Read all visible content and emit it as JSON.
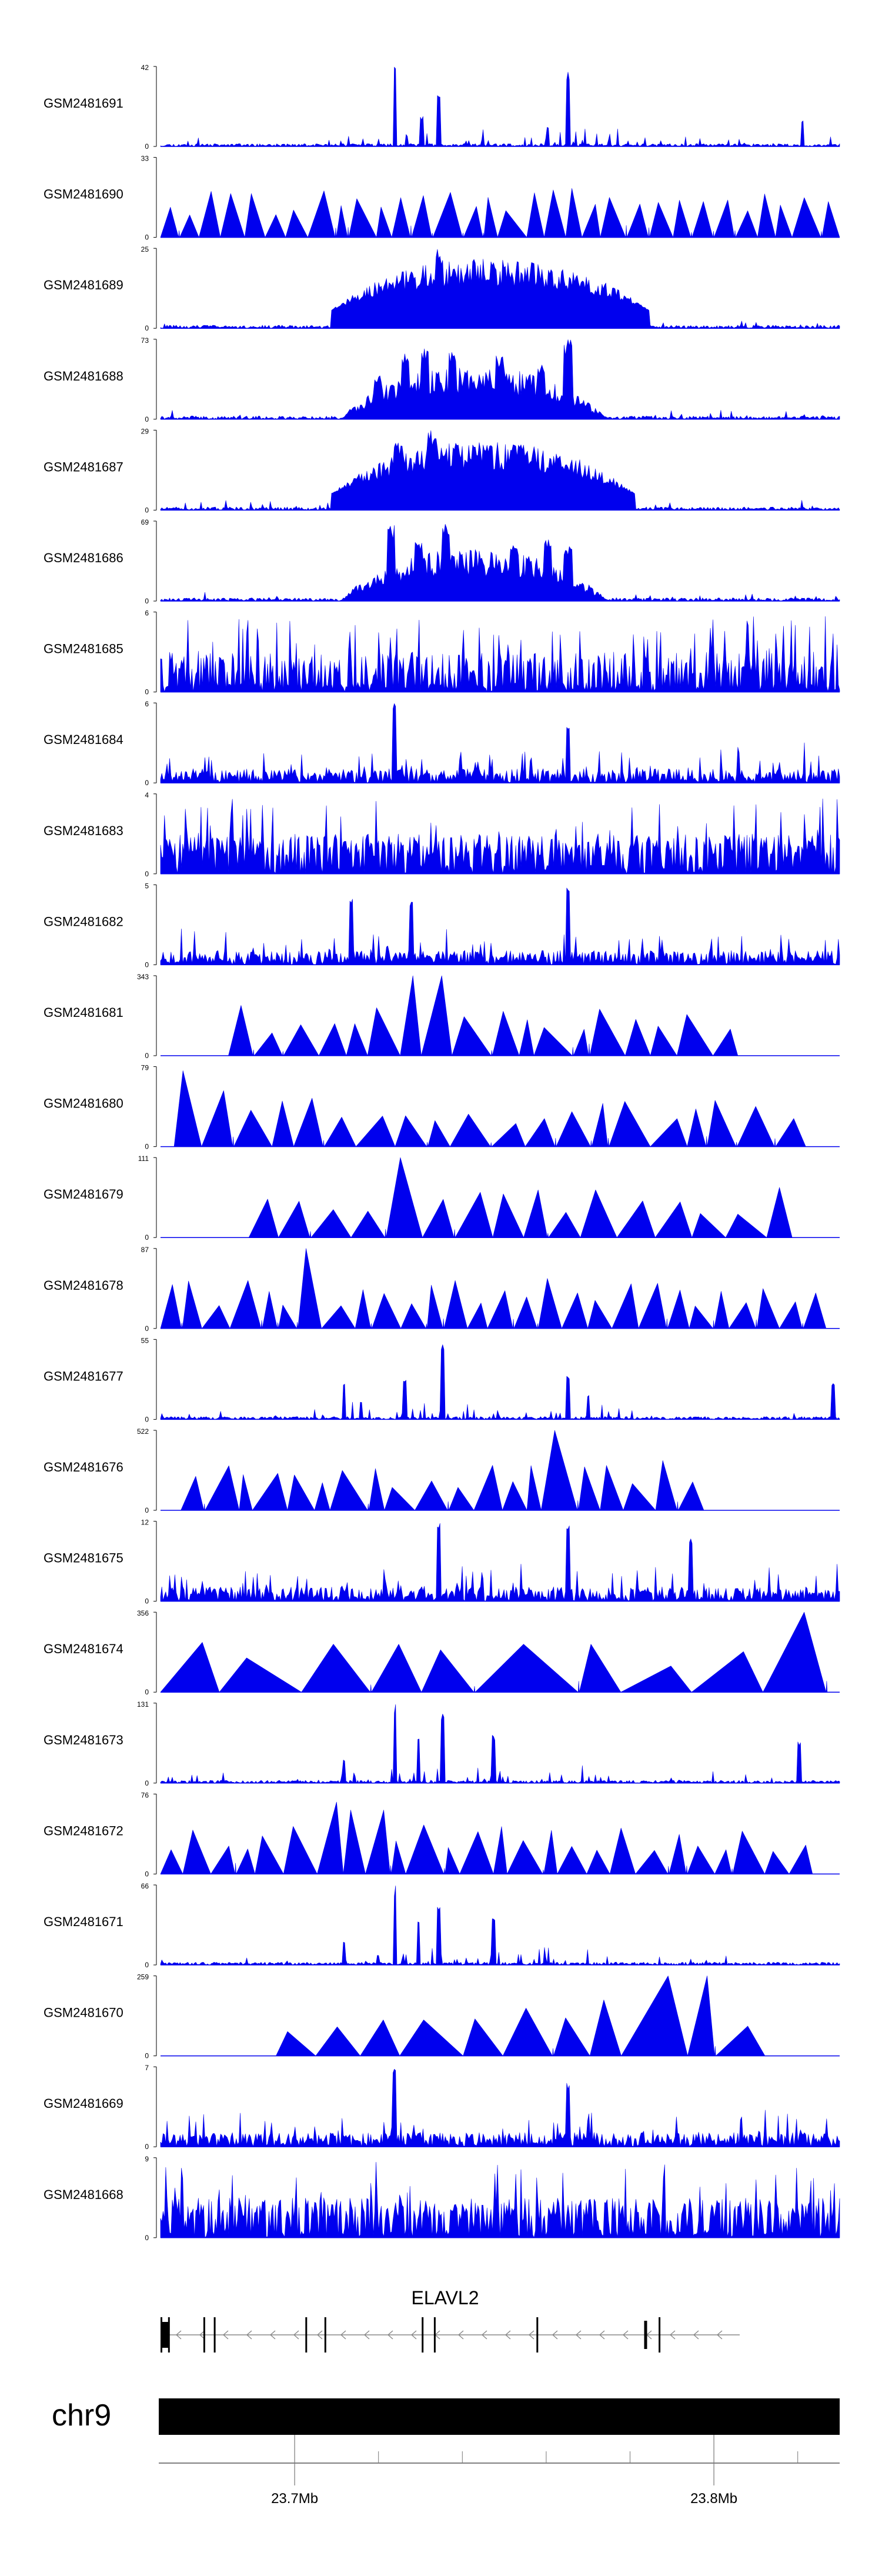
{
  "chart_data": {
    "type": "area",
    "title": "",
    "xlabel": "",
    "ylabel": "",
    "xlim": [
      23.668,
      23.83
    ],
    "tracks": [
      {
        "name": "GSM2481691",
        "ymax": 42,
        "ymin": 0,
        "style": "sparse",
        "peaks": [
          [
            0.345,
            1.0
          ],
          [
            0.385,
            0.38
          ],
          [
            0.41,
            0.7
          ],
          [
            0.6,
            0.95
          ],
          [
            0.945,
            0.33
          ],
          [
            0.57,
            0.25
          ]
        ],
        "seed": 11
      },
      {
        "name": "GSM2481690",
        "ymax": 33,
        "ymin": 0,
        "style": "triangles",
        "first": 0.0,
        "last": 1.0,
        "n": 32,
        "seed": 21
      },
      {
        "name": "GSM2481689",
        "ymax": 25,
        "ymin": 0,
        "style": "cluster",
        "cstart": 0.25,
        "cend": 0.72,
        "base": 0.22,
        "peaks": [
          [
            0.41,
            1.0
          ],
          [
            0.36,
            0.45
          ],
          [
            0.45,
            0.55
          ],
          [
            0.5,
            0.5
          ]
        ],
        "seed": 31
      },
      {
        "name": "GSM2481688",
        "ymax": 73,
        "ymin": 0,
        "style": "cluster",
        "cstart": 0.26,
        "cend": 0.66,
        "base": 0.0,
        "peaks": [
          [
            0.32,
            0.55
          ],
          [
            0.36,
            0.85
          ],
          [
            0.39,
            0.92
          ],
          [
            0.43,
            0.85
          ],
          [
            0.5,
            0.8
          ],
          [
            0.56,
            0.7
          ],
          [
            0.6,
            1.0
          ]
        ],
        "seed": 41
      },
      {
        "name": "GSM2481687",
        "ymax": 29,
        "ymin": 0,
        "style": "cluster",
        "cstart": 0.25,
        "cend": 0.7,
        "base": 0.2,
        "peaks": [
          [
            0.35,
            0.85
          ],
          [
            0.4,
            1.0
          ],
          [
            0.47,
            0.7
          ],
          [
            0.55,
            0.65
          ]
        ],
        "seed": 51
      },
      {
        "name": "GSM2481686",
        "ymax": 69,
        "ymin": 0,
        "style": "cluster",
        "cstart": 0.26,
        "cend": 0.66,
        "base": 0.0,
        "peaks": [
          [
            0.34,
            0.95
          ],
          [
            0.38,
            0.8
          ],
          [
            0.42,
            1.0
          ],
          [
            0.52,
            0.7
          ],
          [
            0.57,
            0.8
          ],
          [
            0.6,
            0.7
          ]
        ],
        "seed": 61
      },
      {
        "name": "GSM2481685",
        "ymax": 6,
        "ymin": 0,
        "style": "dense",
        "density": 0.55,
        "seed": 71
      },
      {
        "name": "GSM2481684",
        "ymax": 6,
        "ymin": 0,
        "style": "noisy",
        "peaks": [
          [
            0.345,
            1.0
          ],
          [
            0.6,
            0.7
          ]
        ],
        "seed": 81
      },
      {
        "name": "GSM2481683",
        "ymax": 4,
        "ymin": 0,
        "style": "dense",
        "density": 0.7,
        "seed": 91
      },
      {
        "name": "GSM2481682",
        "ymax": 5,
        "ymin": 0,
        "style": "noisy",
        "peaks": [
          [
            0.6,
            1.0
          ],
          [
            0.28,
            0.85
          ],
          [
            0.37,
            0.8
          ]
        ],
        "seed": 101
      },
      {
        "name": "GSM2481681",
        "ymax": 343,
        "ymin": 0,
        "style": "triangles",
        "first": 0.1,
        "last": 0.85,
        "n": 18,
        "peaks": [
          [
            0.38,
            1.0
          ],
          [
            0.345,
            0.6
          ],
          [
            0.3,
            0.4
          ]
        ],
        "seed": 111
      },
      {
        "name": "GSM2481680",
        "ymax": 79,
        "ymin": 0,
        "style": "triangles",
        "first": 0.02,
        "last": 0.95,
        "n": 20,
        "peaks": [
          [
            0.04,
            0.95
          ],
          [
            0.09,
            0.7
          ]
        ],
        "seed": 121
      },
      {
        "name": "GSM2481679",
        "ymax": 111,
        "ymin": 0,
        "style": "triangles",
        "first": 0.13,
        "last": 0.93,
        "n": 16,
        "peaks": [
          [
            0.35,
            1.0
          ]
        ],
        "seed": 131
      },
      {
        "name": "GSM2481678",
        "ymax": 87,
        "ymin": 0,
        "style": "triangles",
        "first": 0.0,
        "last": 0.98,
        "n": 28,
        "peaks": [
          [
            0.21,
            1.0
          ],
          [
            0.12,
            0.6
          ]
        ],
        "seed": 141
      },
      {
        "name": "GSM2481677",
        "ymax": 55,
        "ymin": 0,
        "style": "sparse",
        "peaks": [
          [
            0.415,
            1.0
          ],
          [
            0.36,
            0.5
          ],
          [
            0.6,
            0.55
          ],
          [
            0.27,
            0.45
          ],
          [
            0.63,
            0.3
          ],
          [
            0.99,
            0.45
          ]
        ],
        "seed": 151
      },
      {
        "name": "GSM2481676",
        "ymax": 522,
        "ymin": 0,
        "style": "triangles",
        "first": 0.03,
        "last": 0.8,
        "n": 20,
        "peaks": [
          [
            0.575,
            1.0
          ]
        ],
        "seed": 161
      },
      {
        "name": "GSM2481675",
        "ymax": 12,
        "ymin": 0,
        "style": "noisy",
        "peaks": [
          [
            0.41,
            1.0
          ],
          [
            0.6,
            1.0
          ],
          [
            0.78,
            0.8
          ]
        ],
        "seed": 171
      },
      {
        "name": "GSM2481674",
        "ymax": 356,
        "ymin": 0,
        "style": "triangles",
        "first": 0.0,
        "last": 0.98,
        "n": 10,
        "peaks": [
          [
            0.955,
            1.0
          ],
          [
            0.63,
            0.6
          ],
          [
            0.31,
            0.6
          ]
        ],
        "seed": 181
      },
      {
        "name": "GSM2481673",
        "ymax": 131,
        "ymin": 0,
        "style": "sparse",
        "peaks": [
          [
            0.345,
            1.0
          ],
          [
            0.415,
            0.9
          ],
          [
            0.38,
            0.6
          ],
          [
            0.49,
            0.6
          ],
          [
            0.94,
            0.55
          ],
          [
            0.27,
            0.3
          ]
        ],
        "seed": 191
      },
      {
        "name": "GSM2481672",
        "ymax": 76,
        "ymin": 0,
        "style": "triangles",
        "first": 0.0,
        "last": 0.96,
        "n": 26,
        "peaks": [
          [
            0.26,
            0.9
          ],
          [
            0.3,
            0.8
          ],
          [
            0.065,
            0.55
          ]
        ],
        "seed": 201
      },
      {
        "name": "GSM2481671",
        "ymax": 66,
        "ymin": 0,
        "style": "sparse",
        "peaks": [
          [
            0.345,
            1.0
          ],
          [
            0.41,
            0.8
          ],
          [
            0.38,
            0.55
          ],
          [
            0.49,
            0.6
          ],
          [
            0.27,
            0.3
          ]
        ],
        "seed": 211
      },
      {
        "name": "GSM2481670",
        "ymax": 259,
        "ymin": 0,
        "style": "triangles",
        "first": 0.17,
        "last": 0.89,
        "n": 11,
        "peaks": [
          [
            0.77,
            1.0
          ],
          [
            0.66,
            0.7
          ],
          [
            0.34,
            0.45
          ]
        ],
        "seed": 221
      },
      {
        "name": "GSM2481669",
        "ymax": 7,
        "ymin": 0,
        "style": "noisy",
        "peaks": [
          [
            0.345,
            1.0
          ],
          [
            0.6,
            0.8
          ]
        ],
        "seed": 231
      },
      {
        "name": "GSM2481668",
        "ymax": 9,
        "ymin": 0,
        "style": "dense",
        "density": 0.65,
        "seed": 241
      }
    ],
    "gene": {
      "name": "ELAVL2",
      "strand": "-",
      "exons": [
        0.0,
        0.013,
        0.074,
        0.092,
        0.25,
        0.283,
        0.451,
        0.472,
        0.649,
        0.835,
        0.86
      ]
    },
    "chromosome": "chr9",
    "axis_ticks": [
      {
        "value": 23.7,
        "label": "23.7Mb"
      },
      {
        "value": 23.8,
        "label": "23.8Mb"
      }
    ],
    "minor_ticks": [
      23.72,
      23.74,
      23.76,
      23.78,
      23.82
    ]
  }
}
